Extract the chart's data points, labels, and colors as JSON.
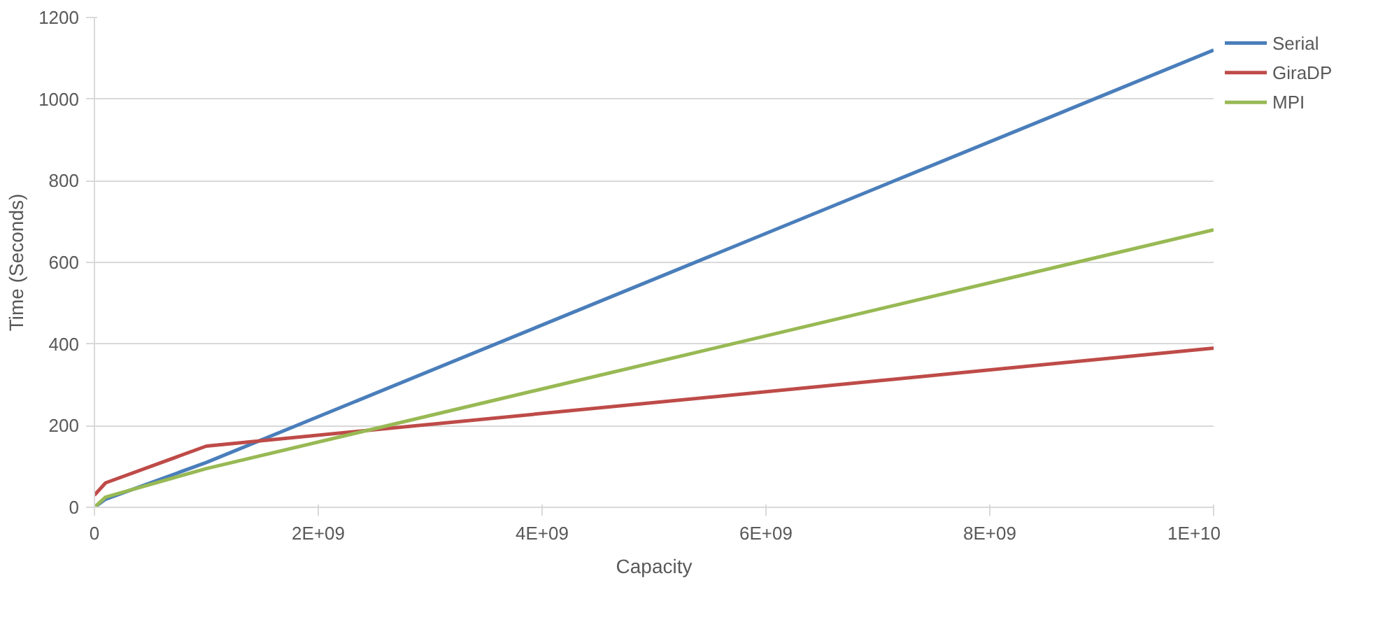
{
  "chart_data": {
    "type": "line",
    "xlabel": "Capacity",
    "ylabel": "Time (Seconds)",
    "x": [
      0,
      100000000,
      1000000000,
      10000000000
    ],
    "series": [
      {
        "name": "Serial",
        "color": "#4a7ebb",
        "values": [
          0,
          20,
          110,
          1120
        ]
      },
      {
        "name": "GiraDP",
        "color": "#be4b48",
        "values": [
          30,
          60,
          150,
          390
        ]
      },
      {
        "name": "MPI",
        "color": "#98b954",
        "values": [
          0,
          25,
          95,
          680
        ]
      }
    ],
    "xlim": [
      0,
      10000000000
    ],
    "ylim": [
      0,
      1200
    ],
    "xticks": [
      0,
      {
        "value": 2000000000,
        "label": "2E+09"
      },
      {
        "value": 4000000000,
        "label": "4E+09"
      },
      {
        "value": 6000000000,
        "label": "6E+09"
      },
      {
        "value": 8000000000,
        "label": "8E+09"
      },
      {
        "value": 10000000000,
        "label": "1E+10"
      }
    ],
    "yticks": [
      0,
      200,
      400,
      600,
      800,
      1000,
      1200
    ],
    "grid": "y",
    "legend": "top right",
    "marker": "none",
    "line_style": "solid"
  }
}
